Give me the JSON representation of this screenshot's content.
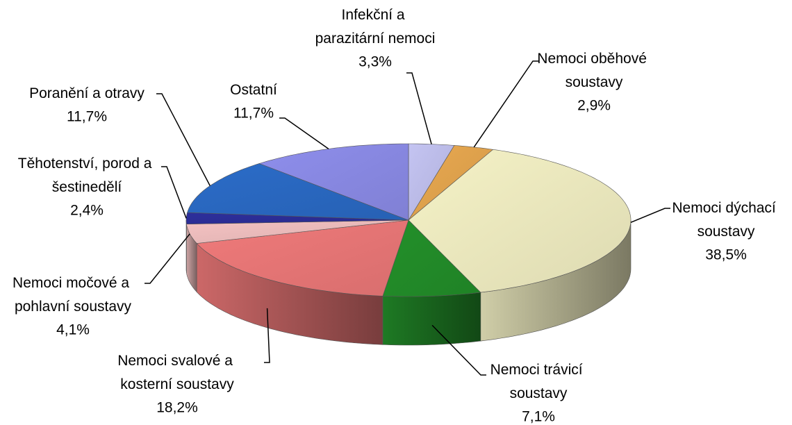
{
  "chart_data": {
    "type": "pie3d",
    "categories": [
      "Infekční a parazitární nemoci",
      "Nemoci oběhové soustavy",
      "Nemoci dýchací soustavy",
      "Nemoci trávicí soustavy",
      "Nemoci svalové a kosterní soustavy",
      "Nemoci močové a pohlavní soustavy",
      "Těhotenství, porod a šestinedělí",
      "Poranění a otravy",
      "Ostatní"
    ],
    "values": [
      3.3,
      2.9,
      38.5,
      7.1,
      18.2,
      4.1,
      2.4,
      11.7,
      11.7
    ],
    "value_labels": [
      "3,3%",
      "2,9%",
      "38,5%",
      "7,1%",
      "18,2%",
      "4,1%",
      "2,4%",
      "11,7%",
      "11,7%"
    ],
    "colors": [
      "#c4c4f2",
      "#e9a950",
      "#f5f2c6",
      "#23902a",
      "#f07a7a",
      "#f4c2c2",
      "#2d2f9c",
      "#2b6cc8",
      "#8e8eec"
    ]
  }
}
